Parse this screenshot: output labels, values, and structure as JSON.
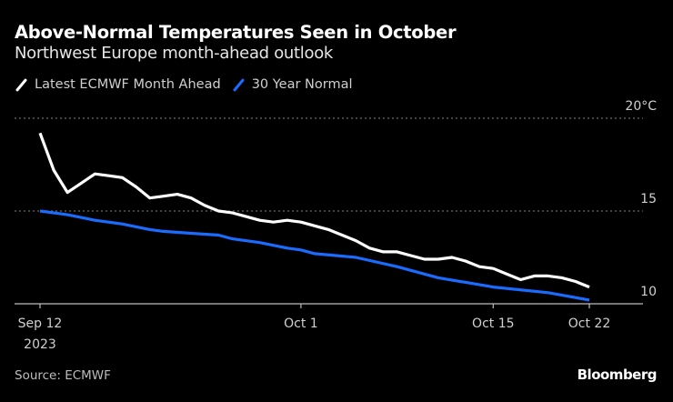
{
  "header": {
    "title": "Above-Normal Temperatures Seen in October",
    "subtitle": "Northwest Europe month-ahead outlook"
  },
  "legend": [
    {
      "label": "Latest ECMWF Month Ahead",
      "color": "#ffffff"
    },
    {
      "label": "30 Year Normal",
      "color": "#1a6cff"
    }
  ],
  "footer": {
    "source": "Source: ECMWF",
    "logo": "Bloomberg"
  },
  "chart_data": {
    "type": "line",
    "title": "Above-Normal Temperatures Seen in October",
    "subtitle": "Northwest Europe month-ahead outlook",
    "xlabel": "",
    "ylabel": "°C",
    "x_start": "2023-09-12",
    "x_end": "2023-10-22",
    "x_unit": "day offset from Sep 12 2023",
    "xlim": [
      0,
      40
    ],
    "ylim": [
      10,
      20
    ],
    "grid": true,
    "legend_position": "top-left",
    "x_ticks": [
      {
        "day": 0,
        "label": "Sep 12",
        "sublabel": "2023"
      },
      {
        "day": 19,
        "label": "Oct 1"
      },
      {
        "day": 33,
        "label": "Oct 15"
      },
      {
        "day": 40,
        "label": "Oct 22"
      }
    ],
    "y_ticks": [
      {
        "value": 10,
        "label": "10"
      },
      {
        "value": 15,
        "label": "15"
      },
      {
        "value": 20,
        "label": "20°C"
      }
    ],
    "series": [
      {
        "name": "Latest ECMWF Month Ahead",
        "color": "#ffffff",
        "x": [
          0,
          1,
          2,
          3,
          4,
          5,
          6,
          7,
          8,
          9,
          10,
          11,
          12,
          13,
          14,
          15,
          16,
          17,
          18,
          19,
          20,
          21,
          22,
          23,
          24,
          25,
          26,
          27,
          28,
          29,
          30,
          31,
          32,
          33,
          34,
          35,
          36,
          37,
          38,
          39,
          40
        ],
        "values": [
          19.2,
          17.2,
          16.0,
          16.5,
          17.0,
          16.9,
          16.8,
          16.3,
          15.7,
          15.8,
          15.9,
          15.7,
          15.3,
          15.0,
          14.9,
          14.7,
          14.5,
          14.4,
          14.5,
          14.4,
          14.2,
          14.0,
          13.7,
          13.4,
          13.0,
          12.8,
          12.8,
          12.6,
          12.4,
          12.4,
          12.5,
          12.3,
          12.0,
          11.9,
          11.6,
          11.3,
          11.5,
          11.5,
          11.4,
          11.2,
          10.9
        ]
      },
      {
        "name": "30 Year Normal",
        "color": "#1a6cff",
        "x": [
          0,
          2,
          4,
          6,
          8,
          9,
          11,
          13,
          14,
          16,
          18,
          19,
          20,
          23,
          26,
          29,
          33,
          37,
          40
        ],
        "values": [
          15.0,
          14.8,
          14.5,
          14.3,
          14.0,
          13.9,
          13.8,
          13.7,
          13.5,
          13.3,
          13.0,
          12.9,
          12.7,
          12.5,
          12.0,
          11.4,
          10.9,
          10.6,
          10.2
        ]
      }
    ]
  }
}
